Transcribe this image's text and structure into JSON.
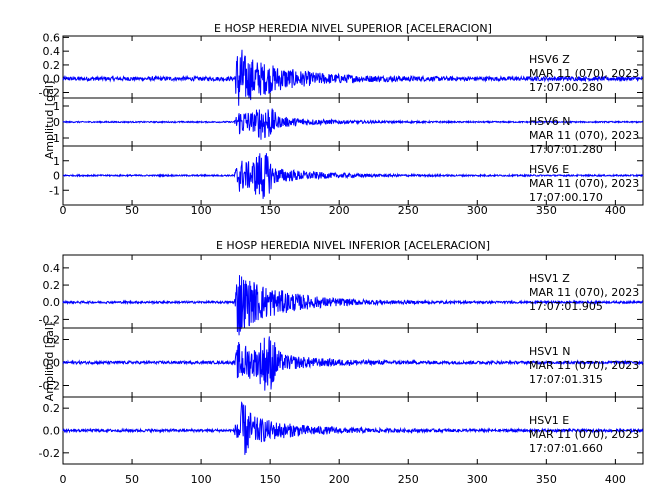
{
  "chart_data": [
    {
      "type": "line",
      "title": "E HOSP HEREDIA NIVEL SUPERIOR [ACELERACION]",
      "ylabel": "Amplitud [gal]",
      "xlim": [
        0,
        420
      ],
      "x_ticks": [
        "0",
        "50",
        "100",
        "150",
        "200",
        "250",
        "300",
        "350",
        "400"
      ],
      "color": "#0000ff",
      "event_onset_s": 124,
      "panels": [
        {
          "station": "HSV6",
          "component": "Z",
          "date": "MAR 11 (070), 2023",
          "time": "17:07:00.280",
          "ylim": [
            -0.28,
            0.62
          ],
          "y_ticks": [
            "0.6",
            "0.4",
            "0.2",
            "0.0",
            "-0.2"
          ],
          "noise_amp": 0.03,
          "peak_amp": 0.55,
          "peak_time_s": 125
        },
        {
          "station": "HSV6",
          "component": "N",
          "date": "MAR 11 (070), 2023",
          "time": "17:07:01.280",
          "ylim": [
            -1.5,
            1.5
          ],
          "y_ticks": [
            "1",
            "0",
            "-1"
          ],
          "noise_amp": 0.04,
          "peak_amp": 1.2,
          "peak_time_s": 146
        },
        {
          "station": "HSV6",
          "component": "E",
          "date": "MAR 11 (070), 2023",
          "time": "17:07:00.170",
          "ylim": [
            -2.0,
            2.0
          ],
          "y_ticks": [
            "1",
            "0",
            "-1"
          ],
          "noise_amp": 0.05,
          "peak_amp": 1.7,
          "peak_time_s": 144
        }
      ]
    },
    {
      "type": "line",
      "title": "E HOSP HEREDIA NIVEL INFERIOR [ACELERACION]",
      "ylabel": "Amplitud [gal]",
      "xlim": [
        0,
        420
      ],
      "x_ticks": [
        "0",
        "50",
        "100",
        "150",
        "200",
        "250",
        "300",
        "350",
        "400"
      ],
      "color": "#0000ff",
      "event_onset_s": 124,
      "panels": [
        {
          "station": "HSV1",
          "component": "Z",
          "date": "MAR 11 (070), 2023",
          "time": "17:07:01.905",
          "ylim": [
            -0.3,
            0.55
          ],
          "y_ticks": [
            "0.4",
            "0.2",
            "0.0",
            "-0.2"
          ],
          "noise_amp": 0.012,
          "peak_amp": 0.5,
          "peak_time_s": 124
        },
        {
          "station": "HSV1",
          "component": "N",
          "date": "MAR 11 (070), 2023",
          "time": "17:07:01.315",
          "ylim": [
            -0.3,
            0.3
          ],
          "y_ticks": [
            "0.2",
            "0.0",
            "-0.2"
          ],
          "noise_amp": 0.012,
          "peak_amp": 0.25,
          "peak_time_s": 148
        },
        {
          "station": "HSV1",
          "component": "E",
          "date": "MAR 11 (070), 2023",
          "time": "17:07:01.660",
          "ylim": [
            -0.3,
            0.3
          ],
          "y_ticks": [
            "0.2",
            "0.0",
            "-0.2"
          ],
          "noise_amp": 0.012,
          "peak_amp": 0.24,
          "peak_time_s": 130
        }
      ]
    }
  ]
}
